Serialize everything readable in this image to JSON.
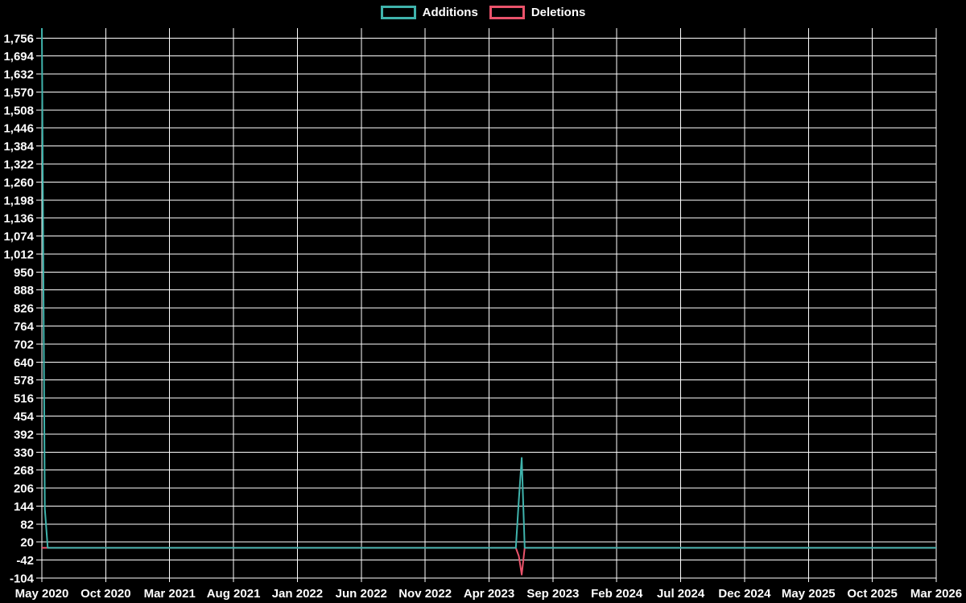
{
  "colors": {
    "background": "#000000",
    "grid": "#ffffff",
    "text": "#ffffff",
    "additions": "#3fb3ac",
    "deletions": "#ea536b"
  },
  "chart_data": {
    "type": "line",
    "title": "",
    "legend_position": "top-center",
    "grid": true,
    "series": [
      {
        "name": "Additions",
        "color": "#3fb3ac",
        "points_x_months_since_may_2020": [
          0,
          0.23,
          0.46,
          37.1,
          37.33,
          37.56,
          37.79,
          70
        ],
        "values": [
          1790,
          134,
          0,
          0,
          165,
          310,
          0,
          0
        ]
      },
      {
        "name": "Deletions",
        "color": "#ea536b",
        "points_x_months_since_may_2020": [
          0,
          37.1,
          37.33,
          37.56,
          37.79,
          70
        ],
        "values": [
          0,
          0,
          -28,
          -92,
          0,
          0
        ]
      }
    ],
    "x_axis": {
      "tick_labels": [
        "May 2020",
        "Oct 2020",
        "Mar 2021",
        "Aug 2021",
        "Jan 2022",
        "Jun 2022",
        "Nov 2022",
        "Apr 2023",
        "Sep 2023",
        "Feb 2024",
        "Jul 2024",
        "Dec 2024",
        "May 2025",
        "Oct 2025",
        "Mar 2026"
      ],
      "tick_interval_months": 5,
      "range_months": [
        0,
        70
      ]
    },
    "y_axis": {
      "tick_values": [
        1756,
        1694,
        1632,
        1570,
        1508,
        1446,
        1384,
        1322,
        1260,
        1198,
        1136,
        1074,
        1012,
        950,
        888,
        826,
        764,
        702,
        640,
        578,
        516,
        454,
        392,
        330,
        268,
        206,
        144,
        82,
        20,
        -42,
        -104
      ],
      "tick_labels": [
        "1,756",
        "1,694",
        "1,632",
        "1,570",
        "1,508",
        "1,446",
        "1,384",
        "1,322",
        "1,260",
        "1,198",
        "1,136",
        "1,074",
        "1,012",
        "950",
        "888",
        "826",
        "764",
        "702",
        "640",
        "578",
        "516",
        "454",
        "392",
        "330",
        "268",
        "206",
        "144",
        "82",
        "20",
        "-42",
        "-104"
      ],
      "tick_step": 62,
      "plot_min": -104,
      "plot_max": 1790
    }
  }
}
